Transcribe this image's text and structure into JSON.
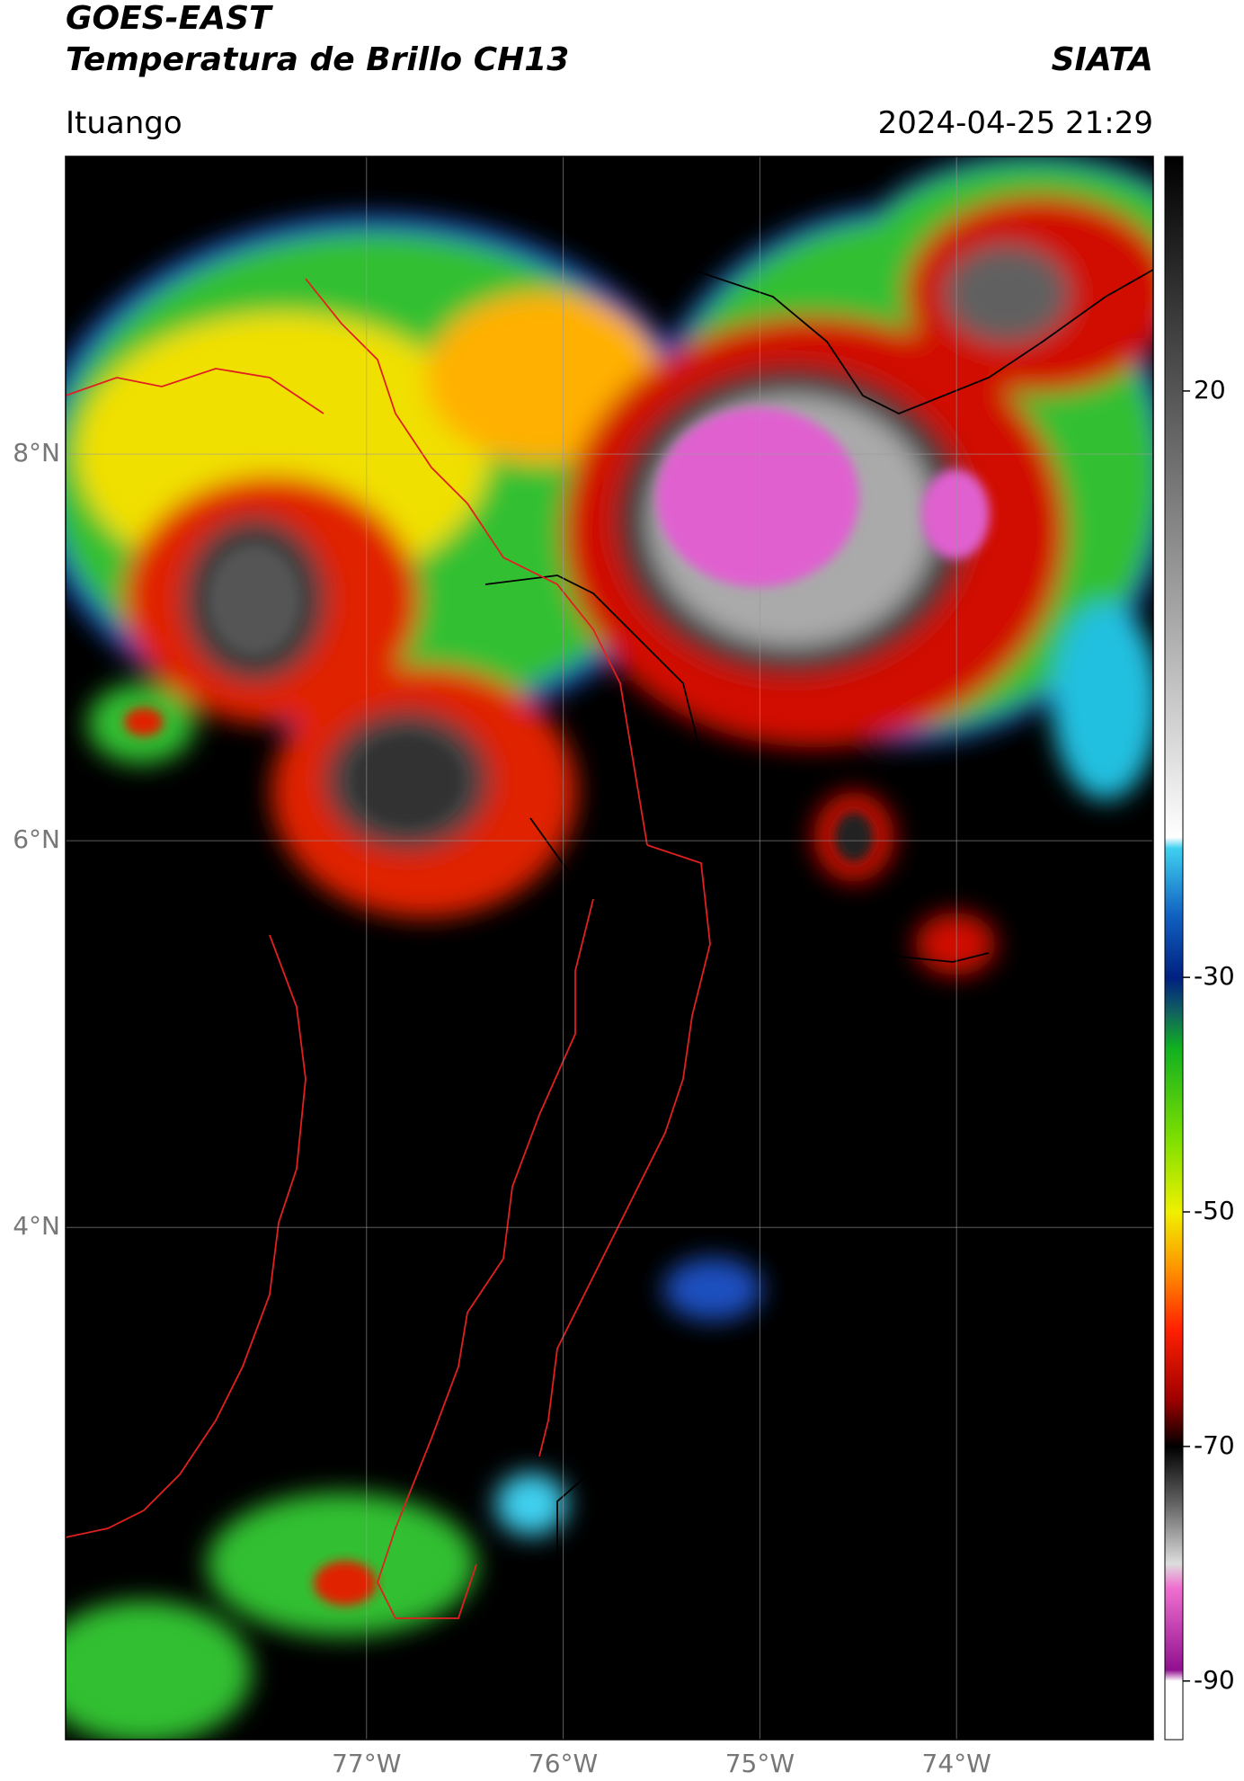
{
  "header": {
    "title": "GOES-EAST",
    "subtitle": "Temperatura de Brillo CH13",
    "source": "SIATA",
    "location": "Ituango",
    "datetime": "2024-04-25 21:29"
  },
  "map": {
    "lon_range": [
      -78.53,
      -73.0
    ],
    "lat_range": [
      1.35,
      9.54
    ],
    "lon_ticks": [
      {
        "value": -77,
        "label": "77°W"
      },
      {
        "value": -76,
        "label": "76°W"
      },
      {
        "value": -75,
        "label": "75°W"
      },
      {
        "value": -74,
        "label": "74°W"
      }
    ],
    "lat_ticks": [
      {
        "value": 8,
        "label": "8°N"
      },
      {
        "value": 6,
        "label": "6°N"
      },
      {
        "value": 4,
        "label": "4°N"
      }
    ]
  },
  "colorbar": {
    "range": [
      -95,
      40
    ],
    "ticks": [
      20,
      -30,
      -50,
      -70,
      -90
    ]
  }
}
